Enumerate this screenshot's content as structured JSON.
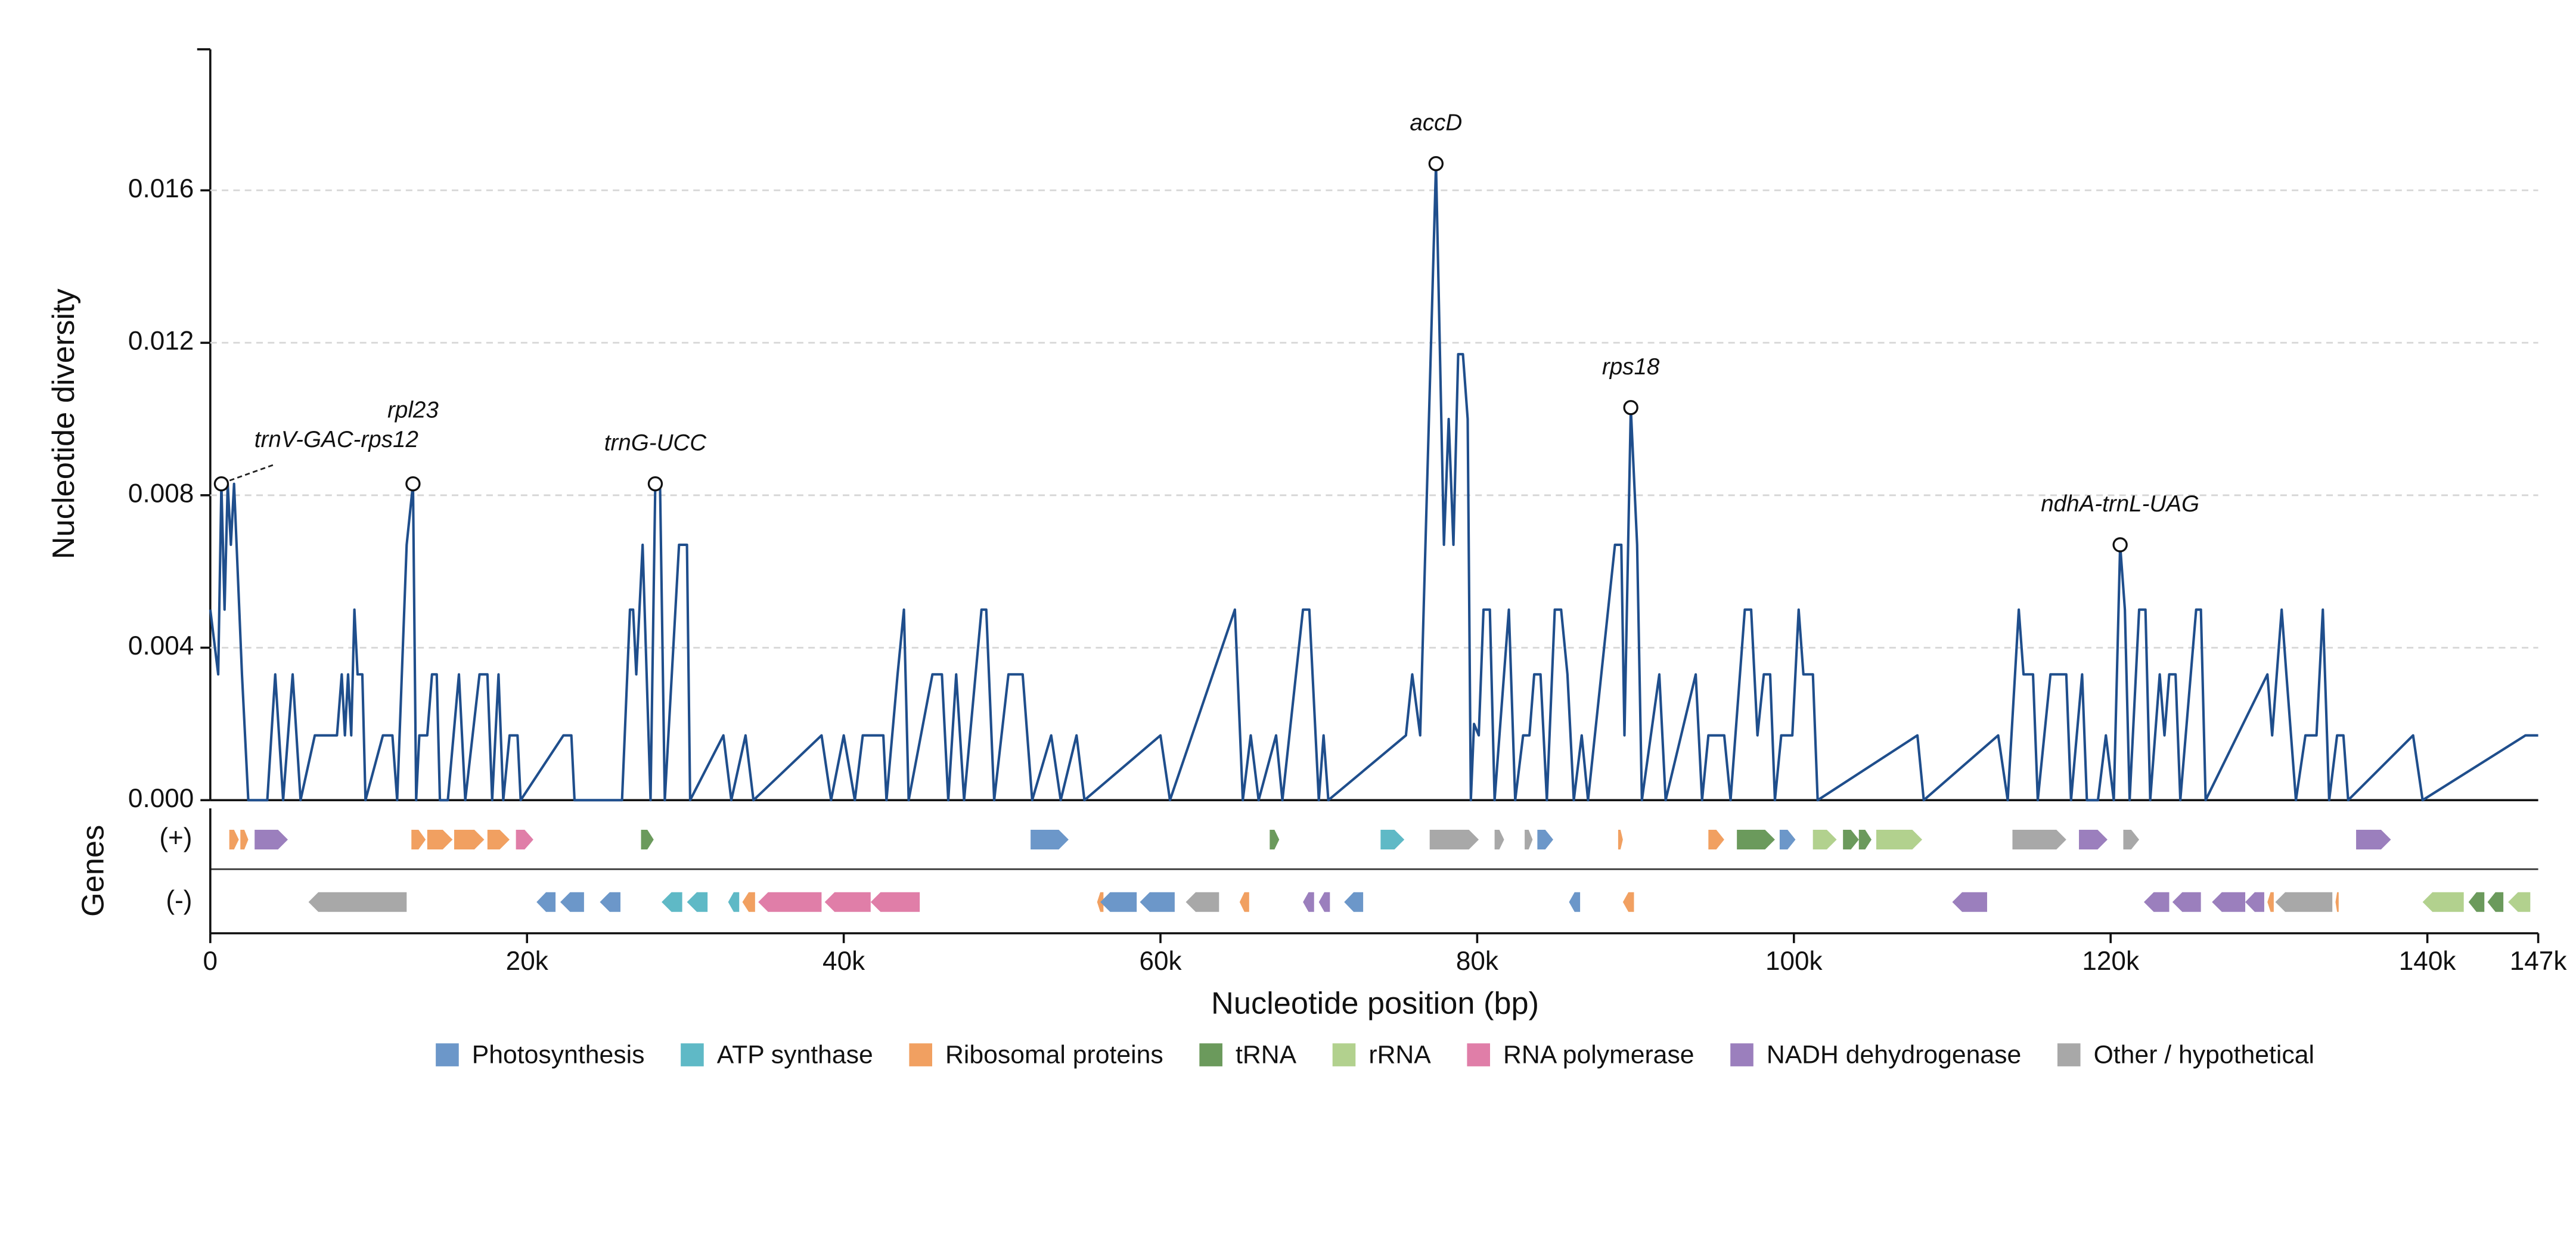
{
  "chart_data": {
    "type": "line",
    "ylabel": "Nucleotide diversity",
    "xlabel": "Nucleotide position (bp)",
    "track_label": "Genes",
    "plus_label": "(+)",
    "minus_label": "(-)",
    "xlim": [
      0,
      147000
    ],
    "ylim": [
      0,
      0.0197
    ],
    "xticks": [
      0,
      {
        "value": 20000,
        "label": "20k"
      },
      {
        "value": 40000,
        "label": "40k"
      },
      {
        "value": 60000,
        "label": "60k"
      },
      {
        "value": 80000,
        "label": "80k"
      },
      {
        "value": 100000,
        "label": "100k"
      },
      {
        "value": 120000,
        "label": "120k"
      },
      {
        "value": 140000,
        "label": "140k"
      },
      {
        "value": 147000,
        "label": "147k"
      }
    ],
    "yticks": [
      {
        "value": 0,
        "label": "0.000"
      },
      0.004,
      0.008,
      0.012,
      0.016
    ],
    "grid": true,
    "series": [
      {
        "color": "#1f4e8c",
        "x": [
          0,
          500,
          700,
          900,
          1100,
          1300,
          1500,
          2000,
          2400,
          3600,
          4100,
          4600,
          5200,
          5700,
          6600,
          8000,
          8300,
          8500,
          8700,
          8900,
          9100,
          9300,
          9600,
          9800,
          10900,
          11500,
          11800,
          12400,
          12800,
          13000,
          13200,
          13700,
          14000,
          14300,
          14500,
          15000,
          15700,
          16100,
          17000,
          17500,
          17800,
          18200,
          18500,
          18900,
          19400,
          19600,
          22300,
          22800,
          23000,
          26000,
          26500,
          26700,
          26900,
          27300,
          27800,
          28100,
          28400,
          28700,
          29600,
          30100,
          30300,
          32400,
          32900,
          33800,
          34300,
          38600,
          39200,
          40000,
          40700,
          41200,
          42500,
          42700,
          43400,
          43800,
          44100,
          45600,
          46200,
          46600,
          47100,
          47600,
          48700,
          49000,
          49500,
          50400,
          51300,
          51900,
          53100,
          53700,
          54700,
          55200,
          60000,
          60600,
          64700,
          65200,
          65700,
          66200,
          67300,
          67700,
          69000,
          69400,
          70000,
          70300,
          70600,
          75500,
          75900,
          76400,
          77400,
          77900,
          78200,
          78500,
          78800,
          79100,
          79400,
          79600,
          79800,
          80100,
          80400,
          80800,
          81100,
          82000,
          82400,
          82900,
          83300,
          83600,
          84000,
          84400,
          84900,
          85300,
          85700,
          86100,
          86600,
          87000,
          88700,
          89100,
          89300,
          89700,
          90100,
          90400,
          91500,
          91900,
          93800,
          94200,
          94600,
          95600,
          96000,
          96900,
          97300,
          97700,
          98100,
          98500,
          98800,
          99200,
          99900,
          100300,
          100600,
          101200,
          101500,
          107800,
          108200,
          112900,
          113500,
          114200,
          114500,
          115100,
          115400,
          116200,
          117200,
          117500,
          118200,
          118500,
          119200,
          119700,
          120200,
          120600,
          120900,
          121200,
          121800,
          122200,
          122500,
          123100,
          123400,
          123700,
          124100,
          124400,
          125400,
          125700,
          126000,
          129900,
          130200,
          130800,
          131100,
          131700,
          132300,
          133000,
          133400,
          133800,
          134300,
          134700,
          135000,
          139100,
          139700,
          146200,
          147000
        ],
        "values": [
          0.005,
          0.0033,
          0.0083,
          0.005,
          0.0083,
          0.0067,
          0.0083,
          0.0033,
          0,
          0,
          0.0033,
          0,
          0.0033,
          0,
          0.0017,
          0.0017,
          0.0033,
          0.0017,
          0.0033,
          0.0017,
          0.005,
          0.0033,
          0.0033,
          0,
          0.0017,
          0.0017,
          0,
          0.0067,
          0.0083,
          0,
          0.0017,
          0.0017,
          0.0033,
          0.0033,
          0,
          0,
          0.0033,
          0,
          0.0033,
          0.0033,
          0,
          0.0033,
          0,
          0.0017,
          0.0017,
          0,
          0.0017,
          0.0017,
          0,
          0,
          0.005,
          0.005,
          0.0033,
          0.0067,
          0,
          0.0083,
          0.0083,
          0,
          0.0067,
          0.0067,
          0,
          0.0017,
          0,
          0.0017,
          0,
          0.0017,
          0,
          0.0017,
          0,
          0.0017,
          0.0017,
          0,
          0.0033,
          0.005,
          0,
          0.0033,
          0.0033,
          0,
          0.0033,
          0,
          0.005,
          0.005,
          0,
          0.0033,
          0.0033,
          0,
          0.0017,
          0,
          0.0017,
          0,
          0.0017,
          0,
          0.005,
          0,
          0.0017,
          0,
          0.0017,
          0,
          0.005,
          0.005,
          0,
          0.0017,
          0,
          0.0017,
          0.0033,
          0.0017,
          0.0167,
          0.0067,
          0.01,
          0.0067,
          0.0117,
          0.0117,
          0.01,
          0,
          0.002,
          0.0017,
          0.005,
          0.005,
          0,
          0.005,
          0,
          0.0017,
          0.0017,
          0.0033,
          0.0033,
          0,
          0.005,
          0.005,
          0.0033,
          0,
          0.0017,
          0,
          0.0067,
          0.0067,
          0.0017,
          0.0103,
          0.0067,
          0,
          0.0033,
          0,
          0.0033,
          0,
          0.0017,
          0.0017,
          0,
          0.005,
          0.005,
          0.0017,
          0.0033,
          0.0033,
          0,
          0.0017,
          0.0017,
          0.005,
          0.0033,
          0.0033,
          0,
          0.0017,
          0,
          0.0017,
          0,
          0.005,
          0.0033,
          0.0033,
          0,
          0.0033,
          0.0033,
          0,
          0.0033,
          0,
          0,
          0.0017,
          0,
          0.0067,
          0.005,
          0,
          0.005,
          0.005,
          0,
          0.0033,
          0.0017,
          0.0033,
          0.0033,
          0,
          0.005,
          0.005,
          0,
          0.0033,
          0.0017,
          0.005,
          0.0033,
          0,
          0.0017,
          0.0017,
          0.005,
          0,
          0.0017,
          0.0017,
          0,
          0.0017,
          0,
          0.0017,
          0.0017
        ]
      }
    ],
    "annotations": [
      {
        "text": "trnV-GAC-rps12",
        "x": 700,
        "y": 0.0083
      },
      {
        "text": "rpl23",
        "x": 12800,
        "y": 0.0083
      },
      {
        "text": "trnG-UCC",
        "x": 28100,
        "y": 0.0083
      },
      {
        "text": "accD",
        "x": 77400,
        "y": 0.0167
      },
      {
        "text": "rps18",
        "x": 89700,
        "y": 0.0103
      },
      {
        "text": "ndhA-trnL-UAG",
        "x": 120600,
        "y": 0.0067
      }
    ],
    "gene_categories": [
      {
        "name": "Photosynthesis",
        "color": "#6c97c9"
      },
      {
        "name": "ATP synthase",
        "color": "#5fb9c6"
      },
      {
        "name": "Ribosomal proteins",
        "color": "#f1a061"
      },
      {
        "name": "tRNA",
        "color": "#6b9a5c"
      },
      {
        "name": "rRNA",
        "color": "#b2d18e"
      },
      {
        "name": "RNA polymerase",
        "color": "#e07ea8"
      },
      {
        "name": "NADH dehydrogenase",
        "color": "#9b7fbd"
      },
      {
        "name": "Other / hypothetical",
        "color": "#a8a8a8"
      }
    ],
    "genes_plus": [
      {
        "start": 1200,
        "end": 1800,
        "color": "#f1a061"
      },
      {
        "start": 1900,
        "end": 2400,
        "color": "#f1a061"
      },
      {
        "start": 2800,
        "end": 4900,
        "color": "#9b7fbd"
      },
      {
        "start": 12700,
        "end": 13600,
        "color": "#f1a061"
      },
      {
        "start": 13700,
        "end": 15300,
        "color": "#f1a061"
      },
      {
        "start": 15400,
        "end": 17300,
        "color": "#f1a061"
      },
      {
        "start": 17500,
        "end": 18900,
        "color": "#f1a061"
      },
      {
        "start": 19300,
        "end": 20400,
        "color": "#e07ea8"
      },
      {
        "start": 27200,
        "end": 28000,
        "color": "#6b9a5c"
      },
      {
        "start": 51800,
        "end": 54200,
        "color": "#6c97c9"
      },
      {
        "start": 66900,
        "end": 67500,
        "color": "#6b9a5c"
      },
      {
        "start": 73900,
        "end": 75400,
        "color": "#5fb9c6"
      },
      {
        "start": 77000,
        "end": 80100,
        "color": "#a8a8a8"
      },
      {
        "start": 81100,
        "end": 81700,
        "color": "#a8a8a8"
      },
      {
        "start": 83000,
        "end": 83500,
        "color": "#a8a8a8"
      },
      {
        "start": 83800,
        "end": 84800,
        "color": "#6c97c9"
      },
      {
        "start": 88900,
        "end": 89200,
        "color": "#f1a061"
      },
      {
        "start": 94600,
        "end": 95600,
        "color": "#f1a061"
      },
      {
        "start": 96400,
        "end": 98800,
        "color": "#6b9a5c"
      },
      {
        "start": 99100,
        "end": 100100,
        "color": "#6c97c9"
      },
      {
        "start": 101200,
        "end": 102700,
        "color": "#b2d18e"
      },
      {
        "start": 103100,
        "end": 104100,
        "color": "#6b9a5c"
      },
      {
        "start": 104100,
        "end": 104900,
        "color": "#6b9a5c"
      },
      {
        "start": 105200,
        "end": 108100,
        "color": "#b2d18e"
      },
      {
        "start": 113800,
        "end": 117200,
        "color": "#a8a8a8"
      },
      {
        "start": 118000,
        "end": 119800,
        "color": "#9b7fbd"
      },
      {
        "start": 120800,
        "end": 121800,
        "color": "#a8a8a8"
      },
      {
        "start": 135500,
        "end": 137700,
        "color": "#9b7fbd"
      }
    ],
    "genes_minus": [
      {
        "start": 6200,
        "end": 12400,
        "color": "#a8a8a8"
      },
      {
        "start": 20600,
        "end": 21800,
        "color": "#6c97c9"
      },
      {
        "start": 22100,
        "end": 23600,
        "color": "#6c97c9"
      },
      {
        "start": 24600,
        "end": 25900,
        "color": "#6c97c9"
      },
      {
        "start": 28500,
        "end": 29800,
        "color": "#5fb9c6"
      },
      {
        "start": 30100,
        "end": 31400,
        "color": "#5fb9c6"
      },
      {
        "start": 32700,
        "end": 33400,
        "color": "#5fb9c6"
      },
      {
        "start": 33600,
        "end": 34400,
        "color": "#f1a061"
      },
      {
        "start": 34600,
        "end": 38600,
        "color": "#e07ea8"
      },
      {
        "start": 38800,
        "end": 41700,
        "color": "#e07ea8"
      },
      {
        "start": 41700,
        "end": 44800,
        "color": "#e07ea8"
      },
      {
        "start": 56000,
        "end": 56400,
        "color": "#f1a061"
      },
      {
        "start": 56200,
        "end": 58500,
        "color": "#6c97c9"
      },
      {
        "start": 58700,
        "end": 60900,
        "color": "#6c97c9"
      },
      {
        "start": 61600,
        "end": 63700,
        "color": "#a8a8a8"
      },
      {
        "start": 65000,
        "end": 65600,
        "color": "#f1a061"
      },
      {
        "start": 69000,
        "end": 69700,
        "color": "#9b7fbd"
      },
      {
        "start": 70000,
        "end": 70700,
        "color": "#9b7fbd"
      },
      {
        "start": 71600,
        "end": 72800,
        "color": "#6c97c9"
      },
      {
        "start": 85800,
        "end": 86500,
        "color": "#6c97c9"
      },
      {
        "start": 89200,
        "end": 89900,
        "color": "#f1a061"
      },
      {
        "start": 110000,
        "end": 112200,
        "color": "#9b7fbd"
      },
      {
        "start": 122100,
        "end": 123700,
        "color": "#9b7fbd"
      },
      {
        "start": 123900,
        "end": 125700,
        "color": "#9b7fbd"
      },
      {
        "start": 126400,
        "end": 128500,
        "color": "#9b7fbd"
      },
      {
        "start": 128500,
        "end": 129700,
        "color": "#9b7fbd"
      },
      {
        "start": 129900,
        "end": 130300,
        "color": "#f1a061"
      },
      {
        "start": 130400,
        "end": 134000,
        "color": "#a8a8a8"
      },
      {
        "start": 134200,
        "end": 134400,
        "color": "#f1a061"
      },
      {
        "start": 139700,
        "end": 142300,
        "color": "#b2d18e"
      },
      {
        "start": 142600,
        "end": 143600,
        "color": "#6b9a5c"
      },
      {
        "start": 143800,
        "end": 144800,
        "color": "#6b9a5c"
      },
      {
        "start": 145100,
        "end": 146500,
        "color": "#b2d18e"
      }
    ]
  }
}
